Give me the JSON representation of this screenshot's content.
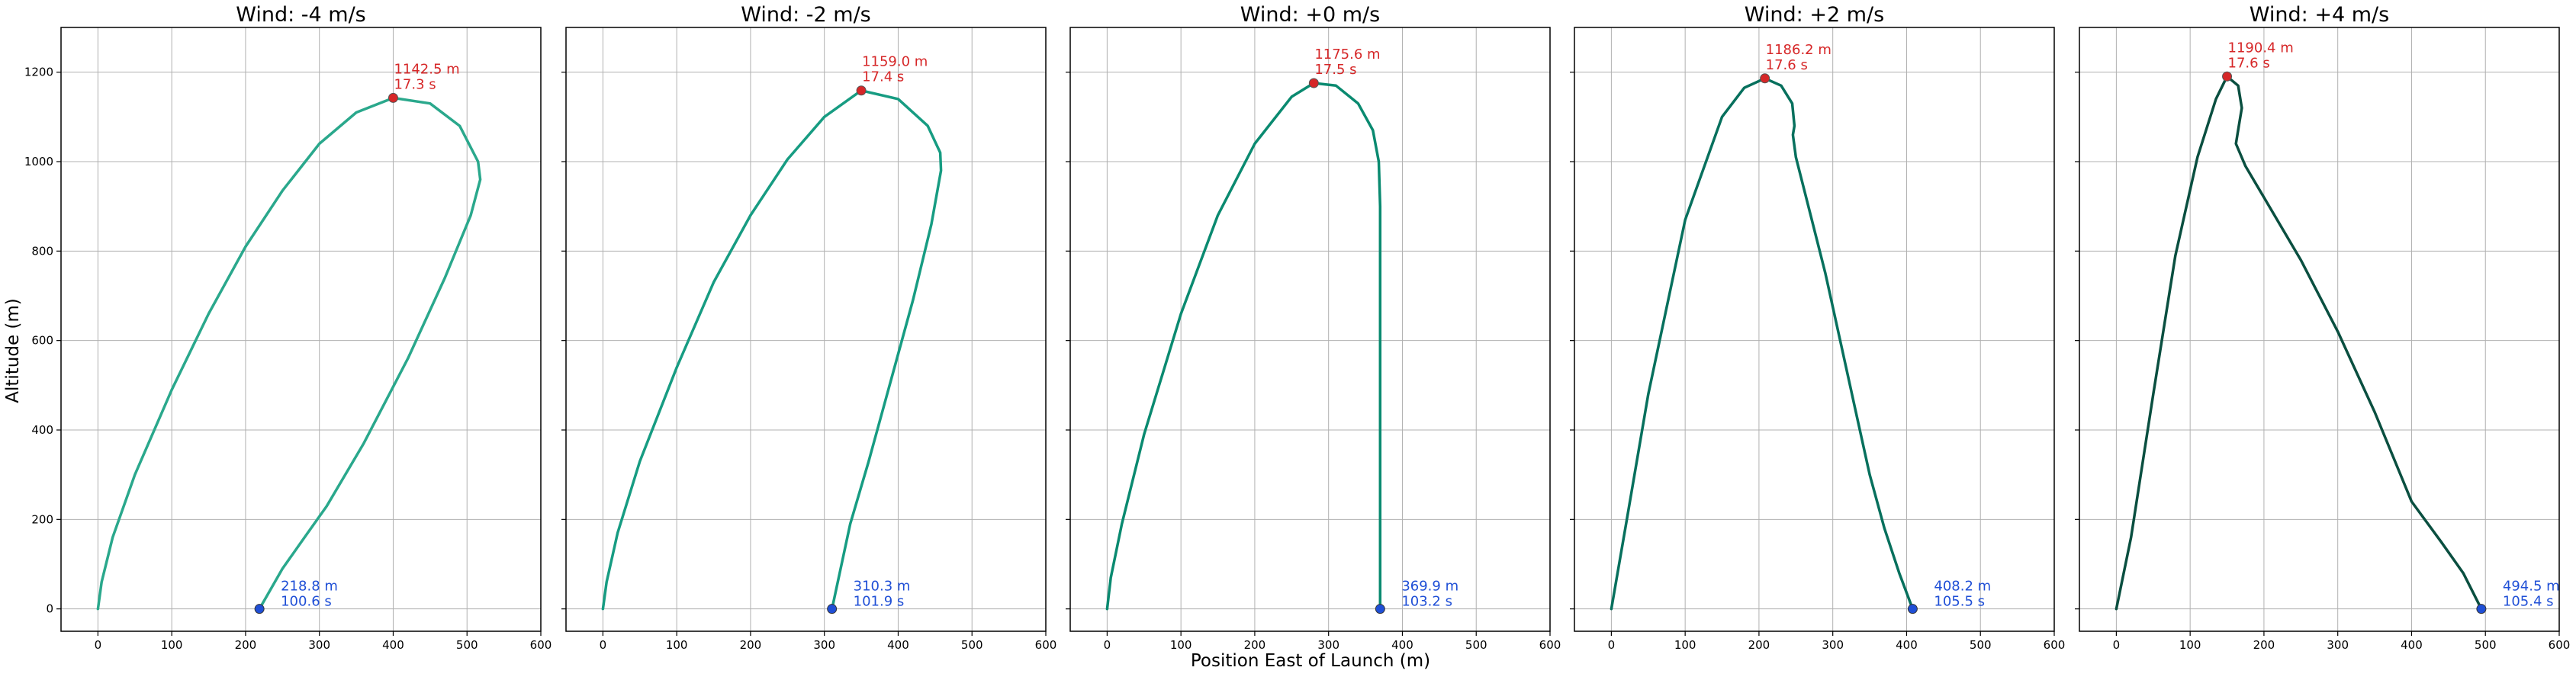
{
  "figure": {
    "xlabel": "Position East of Launch (m)",
    "ylabel": "Altitude (m)"
  },
  "chart_data": [
    {
      "type": "line",
      "title": "Wind: -4 m/s",
      "color": "#2aa88c",
      "xlim": [
        -50,
        600
      ],
      "ylim": [
        -50,
        1300
      ],
      "xticks": [
        0,
        100,
        200,
        300,
        400,
        500,
        600
      ],
      "yticks": [
        0,
        200,
        400,
        600,
        800,
        1000,
        1200
      ],
      "grid": true,
      "x": [
        0,
        5,
        20,
        50,
        100,
        150,
        200,
        250,
        300,
        350,
        400,
        450,
        490,
        515,
        518,
        505,
        470,
        420,
        360,
        310,
        280,
        250,
        218.8
      ],
      "y": [
        0,
        60,
        160,
        300,
        490,
        660,
        810,
        935,
        1040,
        1110,
        1142.5,
        1130,
        1080,
        1000,
        960,
        880,
        740,
        560,
        370,
        230,
        160,
        90,
        0
      ],
      "apogee": {
        "x": 400,
        "y": 1142.5,
        "alt_label": "1142.5 m",
        "time_label": "17.3 s",
        "color": "#d62728"
      },
      "landing": {
        "x": 218.8,
        "y": 0,
        "dist_label": "218.8 m",
        "time_label": "100.6 s",
        "color": "#1f4fd6"
      }
    },
    {
      "type": "line",
      "title": "Wind: -2 m/s",
      "color": "#179c82",
      "xlim": [
        -50,
        600
      ],
      "ylim": [
        -50,
        1300
      ],
      "xticks": [
        0,
        100,
        200,
        300,
        400,
        500,
        600
      ],
      "yticks": [
        0,
        200,
        400,
        600,
        800,
        1000,
        1200
      ],
      "grid": true,
      "x": [
        0,
        5,
        20,
        50,
        100,
        150,
        200,
        250,
        300,
        350,
        400,
        440,
        457,
        458,
        445,
        420,
        390,
        360,
        335,
        310.3
      ],
      "y": [
        0,
        60,
        170,
        330,
        540,
        730,
        880,
        1005,
        1100,
        1159.0,
        1140,
        1080,
        1020,
        980,
        860,
        690,
        510,
        330,
        190,
        0
      ],
      "apogee": {
        "x": 350,
        "y": 1159.0,
        "alt_label": "1159.0 m",
        "time_label": "17.4 s",
        "color": "#d62728"
      },
      "landing": {
        "x": 310.3,
        "y": 0,
        "dist_label": "310.3 m",
        "time_label": "101.9 s",
        "color": "#1f4fd6"
      }
    },
    {
      "type": "line",
      "title": "Wind: +0 m/s",
      "color": "#0a8a70",
      "xlim": [
        -50,
        600
      ],
      "ylim": [
        -50,
        1300
      ],
      "xticks": [
        0,
        100,
        200,
        300,
        400,
        500,
        600
      ],
      "yticks": [
        0,
        200,
        400,
        600,
        800,
        1000,
        1200
      ],
      "grid": true,
      "x": [
        0,
        5,
        20,
        50,
        100,
        150,
        200,
        250,
        280,
        310,
        340,
        360,
        368,
        369.9,
        369.9,
        369.9
      ],
      "y": [
        0,
        70,
        190,
        390,
        660,
        880,
        1040,
        1145,
        1175.6,
        1170,
        1130,
        1070,
        1000,
        900,
        400,
        0
      ],
      "apogee": {
        "x": 280,
        "y": 1175.6,
        "alt_label": "1175.6 m",
        "time_label": "17.5 s",
        "color": "#d62728"
      },
      "landing": {
        "x": 369.9,
        "y": 0,
        "dist_label": "369.9 m",
        "time_label": "103.2 s",
        "color": "#1f4fd6"
      }
    },
    {
      "type": "line",
      "title": "Wind: +2 m/s",
      "color": "#07705d",
      "xlim": [
        -50,
        600
      ],
      "ylim": [
        -50,
        1300
      ],
      "xticks": [
        0,
        100,
        200,
        300,
        400,
        500,
        600
      ],
      "yticks": [
        0,
        200,
        400,
        600,
        800,
        1000,
        1200
      ],
      "grid": true,
      "x": [
        0,
        20,
        50,
        100,
        150,
        180,
        208,
        230,
        245,
        248,
        246,
        250,
        270,
        290,
        310,
        330,
        350,
        370,
        390,
        408.2
      ],
      "y": [
        0,
        190,
        480,
        870,
        1100,
        1165,
        1186.2,
        1170,
        1130,
        1080,
        1060,
        1010,
        880,
        750,
        600,
        450,
        300,
        180,
        80,
        0
      ],
      "apogee": {
        "x": 208,
        "y": 1186.2,
        "alt_label": "1186.2 m",
        "time_label": "17.6 s",
        "color": "#d62728"
      },
      "landing": {
        "x": 408.2,
        "y": 0,
        "dist_label": "408.2 m",
        "time_label": "105.5 s",
        "color": "#1f4fd6"
      }
    },
    {
      "type": "line",
      "title": "Wind: +4 m/s",
      "color": "#0a4f40",
      "xlim": [
        -50,
        600
      ],
      "ylim": [
        -50,
        1300
      ],
      "xticks": [
        0,
        100,
        200,
        300,
        400,
        500,
        600
      ],
      "yticks": [
        0,
        200,
        400,
        600,
        800,
        1000,
        1200
      ],
      "grid": true,
      "x": [
        0,
        20,
        50,
        80,
        110,
        135,
        150,
        165,
        170,
        166,
        162,
        175,
        200,
        250,
        300,
        350,
        400,
        440,
        470,
        494.5
      ],
      "y": [
        0,
        160,
        480,
        790,
        1010,
        1140,
        1190.4,
        1170,
        1120,
        1080,
        1040,
        990,
        920,
        780,
        620,
        440,
        240,
        150,
        80,
        0
      ],
      "apogee": {
        "x": 150,
        "y": 1190.4,
        "alt_label": "1190.4 m",
        "time_label": "17.6 s",
        "color": "#d62728"
      },
      "landing": {
        "x": 494.5,
        "y": 0,
        "dist_label": "494.5 m",
        "time_label": "105.4 s",
        "color": "#1f4fd6"
      }
    }
  ]
}
